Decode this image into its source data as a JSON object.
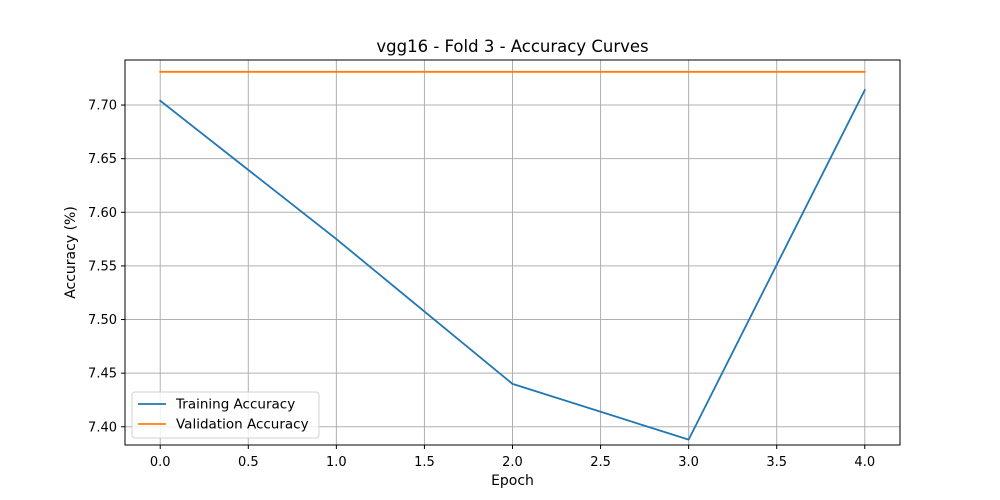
{
  "chart_data": {
    "type": "line",
    "title": "vgg16 - Fold 3 - Accuracy Curves",
    "xlabel": "Epoch",
    "ylabel": "Accuracy (%)",
    "xlim": [
      -0.2,
      4.2
    ],
    "ylim": [
      7.383,
      7.742
    ],
    "x_ticks": [
      0.0,
      0.5,
      1.0,
      1.5,
      2.0,
      2.5,
      3.0,
      3.5,
      4.0
    ],
    "x_tick_labels": [
      "0.0",
      "0.5",
      "1.0",
      "1.5",
      "2.0",
      "2.5",
      "3.0",
      "3.5",
      "4.0"
    ],
    "y_ticks": [
      7.4,
      7.45,
      7.5,
      7.55,
      7.6,
      7.65,
      7.7
    ],
    "y_tick_labels": [
      "7.40",
      "7.45",
      "7.50",
      "7.55",
      "7.60",
      "7.65",
      "7.70"
    ],
    "grid": true,
    "legend_position": "lower-left",
    "x": [
      0,
      1,
      2,
      3,
      4
    ],
    "series": [
      {
        "name": "Training Accuracy",
        "color": "#1f77b4",
        "values": [
          7.704,
          7.575,
          7.44,
          7.388,
          7.714
        ]
      },
      {
        "name": "Validation Accuracy",
        "color": "#ff7f0e",
        "values": [
          7.731,
          7.731,
          7.731,
          7.731,
          7.731
        ]
      }
    ]
  }
}
